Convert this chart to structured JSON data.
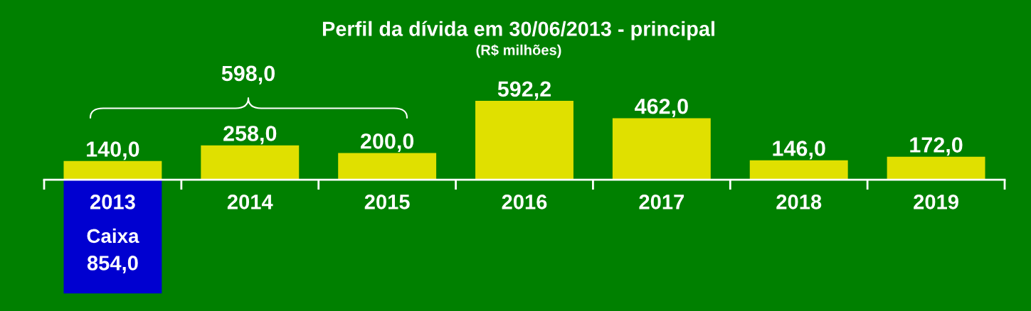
{
  "chart_data": {
    "type": "bar",
    "title": "Perfil da dívida em 30/06/2013 - principal",
    "subtitle": "(R$ milhões)",
    "categories": [
      "2013",
      "2014",
      "2015",
      "2016",
      "2017",
      "2018",
      "2019"
    ],
    "stacked": true,
    "series": [
      {
        "color": "#e0e000",
        "values": [
          140.0,
          258.0,
          200.0,
          592.2,
          462.0,
          146.0,
          172.0
        ],
        "value_labels": [
          "140,0",
          "258,0",
          "200,0",
          "592,2",
          "462,0",
          "146,0",
          "172,0"
        ]
      },
      {
        "name": "Caixa",
        "color": "#0000d0",
        "values": [
          -854.0,
          null,
          null,
          null,
          null,
          null,
          null
        ]
      }
    ],
    "annotations": [
      "598,0",
      {
        "text": "854,0",
        "x": "2013",
        "y": -854.0
      }
    ]
  }
}
